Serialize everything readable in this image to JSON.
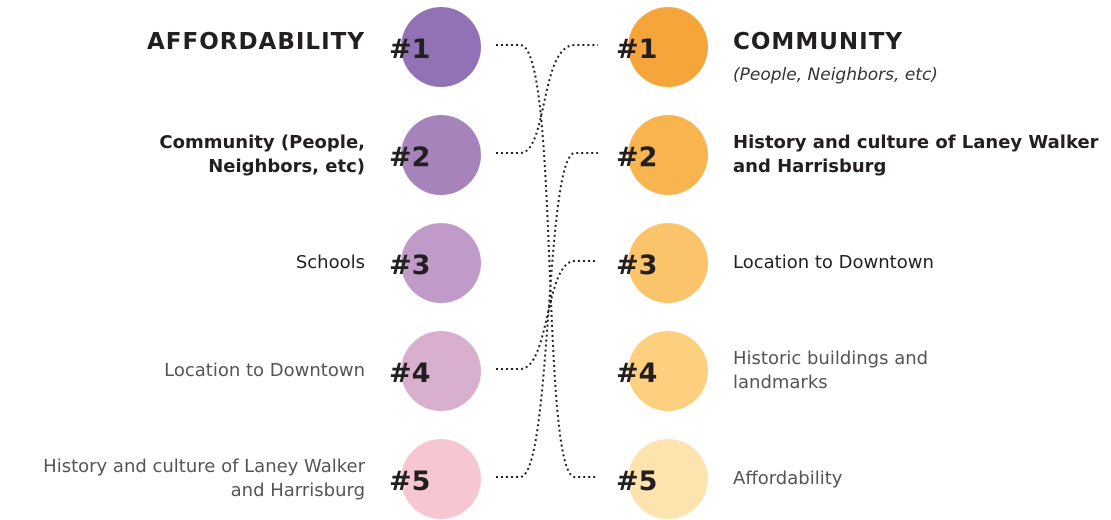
{
  "left": {
    "items": [
      {
        "rank": "#1",
        "label": "AFFORDABILITY",
        "color": "#9172b5"
      },
      {
        "rank": "#2",
        "label": "Community (People, Neighbors, etc)",
        "color": "#a683bb"
      },
      {
        "rank": "#3",
        "label": "Schools",
        "color": "#c09bc9"
      },
      {
        "rank": "#4",
        "label": "Location to Downtown",
        "color": "#d8afcc"
      },
      {
        "rank": "#5",
        "label": "History and culture of Laney Walker and Harrisburg",
        "color": "#f6c7d1"
      }
    ]
  },
  "right": {
    "items": [
      {
        "rank": "#1",
        "label": "COMMUNITY",
        "sublabel": "(People, Neighbors, etc)",
        "color": "#f6a53a"
      },
      {
        "rank": "#2",
        "label": "History and culture of Laney Walker and Harrisburg",
        "color": "#f8b44f"
      },
      {
        "rank": "#3",
        "label": "Location to Downtown",
        "color": "#fbc36a"
      },
      {
        "rank": "#4",
        "label": "Historic buildings and landmarks",
        "color": "#fcd07f"
      },
      {
        "rank": "#5",
        "label": "Affordability",
        "color": "#fde3ae"
      }
    ]
  }
}
